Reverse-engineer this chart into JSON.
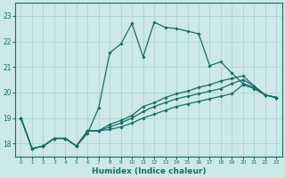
{
  "xlabel": "Humidex (Indice chaleur)",
  "ylabel": "",
  "xlim": [
    -0.5,
    23.5
  ],
  "ylim": [
    17.5,
    23.5
  ],
  "yticks": [
    18,
    19,
    20,
    21,
    22,
    23
  ],
  "xticks": [
    0,
    1,
    2,
    3,
    4,
    5,
    6,
    7,
    8,
    9,
    10,
    11,
    12,
    13,
    14,
    15,
    16,
    17,
    18,
    19,
    20,
    21,
    22,
    23
  ],
  "bg_color": "#cce8e8",
  "grid_color": "#aad4d4",
  "line_color": "#1a6b6b",
  "series": [
    [
      19.0,
      17.8,
      17.9,
      18.2,
      18.2,
      17.9,
      18.4,
      19.4,
      21.55,
      21.9,
      22.7,
      21.4,
      22.75,
      22.55,
      22.5,
      22.4,
      22.3,
      21.05,
      21.2,
      20.75,
      20.35,
      20.2,
      19.9,
      19.8
    ],
    [
      19.0,
      17.8,
      17.9,
      18.2,
      18.2,
      17.9,
      18.5,
      18.5,
      18.55,
      18.65,
      18.8,
      19.0,
      19.15,
      19.3,
      19.45,
      19.55,
      19.65,
      19.75,
      19.85,
      19.95,
      20.3,
      20.15,
      19.9,
      19.8
    ],
    [
      19.0,
      17.8,
      17.9,
      18.2,
      18.2,
      17.9,
      18.5,
      18.5,
      18.65,
      18.8,
      19.0,
      19.25,
      19.45,
      19.6,
      19.75,
      19.85,
      19.95,
      20.05,
      20.15,
      20.35,
      20.5,
      20.25,
      19.9,
      19.8
    ],
    [
      19.0,
      17.8,
      17.9,
      18.2,
      18.2,
      17.9,
      18.5,
      18.5,
      18.75,
      18.9,
      19.1,
      19.45,
      19.6,
      19.8,
      19.95,
      20.05,
      20.2,
      20.3,
      20.45,
      20.55,
      20.65,
      20.25,
      19.9,
      19.8
    ]
  ]
}
